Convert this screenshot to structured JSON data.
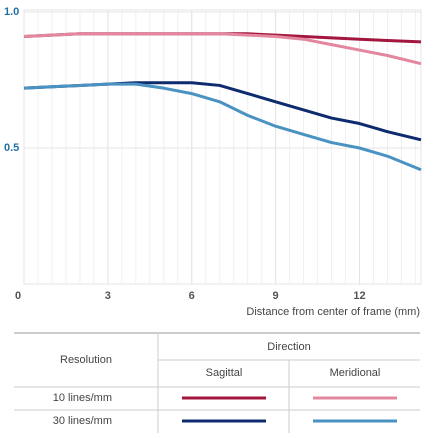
{
  "chart_data": {
    "type": "line",
    "x": [
      0,
      1,
      2,
      3,
      4,
      5,
      6,
      7,
      8,
      9,
      10,
      11,
      12,
      13,
      14.2
    ],
    "xlim": [
      0,
      14.2
    ],
    "ylim": [
      0,
      1
    ],
    "xticks": [
      0,
      3,
      6,
      9,
      12
    ],
    "yticks": [
      0.5,
      {
        "value": 1,
        "label": "1.0"
      }
    ],
    "x_label": "Distance from center of frame (mm)",
    "grid": true,
    "series": [
      {
        "color": "#a3163e",
        "values": [
          0.91,
          0.915,
          0.92,
          0.92,
          0.92,
          0.92,
          0.92,
          0.92,
          0.92,
          0.915,
          0.91,
          0.905,
          0.9,
          0.895,
          0.89
        ]
      },
      {
        "color": "#e2879d",
        "values": [
          0.91,
          0.915,
          0.92,
          0.92,
          0.92,
          0.92,
          0.92,
          0.92,
          0.915,
          0.91,
          0.9,
          0.88,
          0.86,
          0.84,
          0.81
        ]
      },
      {
        "color": "#0e2b6f",
        "values": [
          0.72,
          0.725,
          0.73,
          0.735,
          0.74,
          0.74,
          0.74,
          0.73,
          0.7,
          0.67,
          0.64,
          0.61,
          0.59,
          0.56,
          0.53
        ]
      },
      {
        "color": "#4a92c2",
        "values": [
          0.72,
          0.725,
          0.73,
          0.735,
          0.735,
          0.72,
          0.7,
          0.67,
          0.62,
          0.58,
          0.55,
          0.52,
          0.5,
          0.47,
          0.42
        ]
      }
    ],
    "legend": {
      "row_header": "Resolution",
      "column_header": "Direction",
      "columns": [
        "Sagittal",
        "Meridional"
      ],
      "rows": [
        "10 lines/mm",
        "30 lines/mm"
      ]
    }
  }
}
